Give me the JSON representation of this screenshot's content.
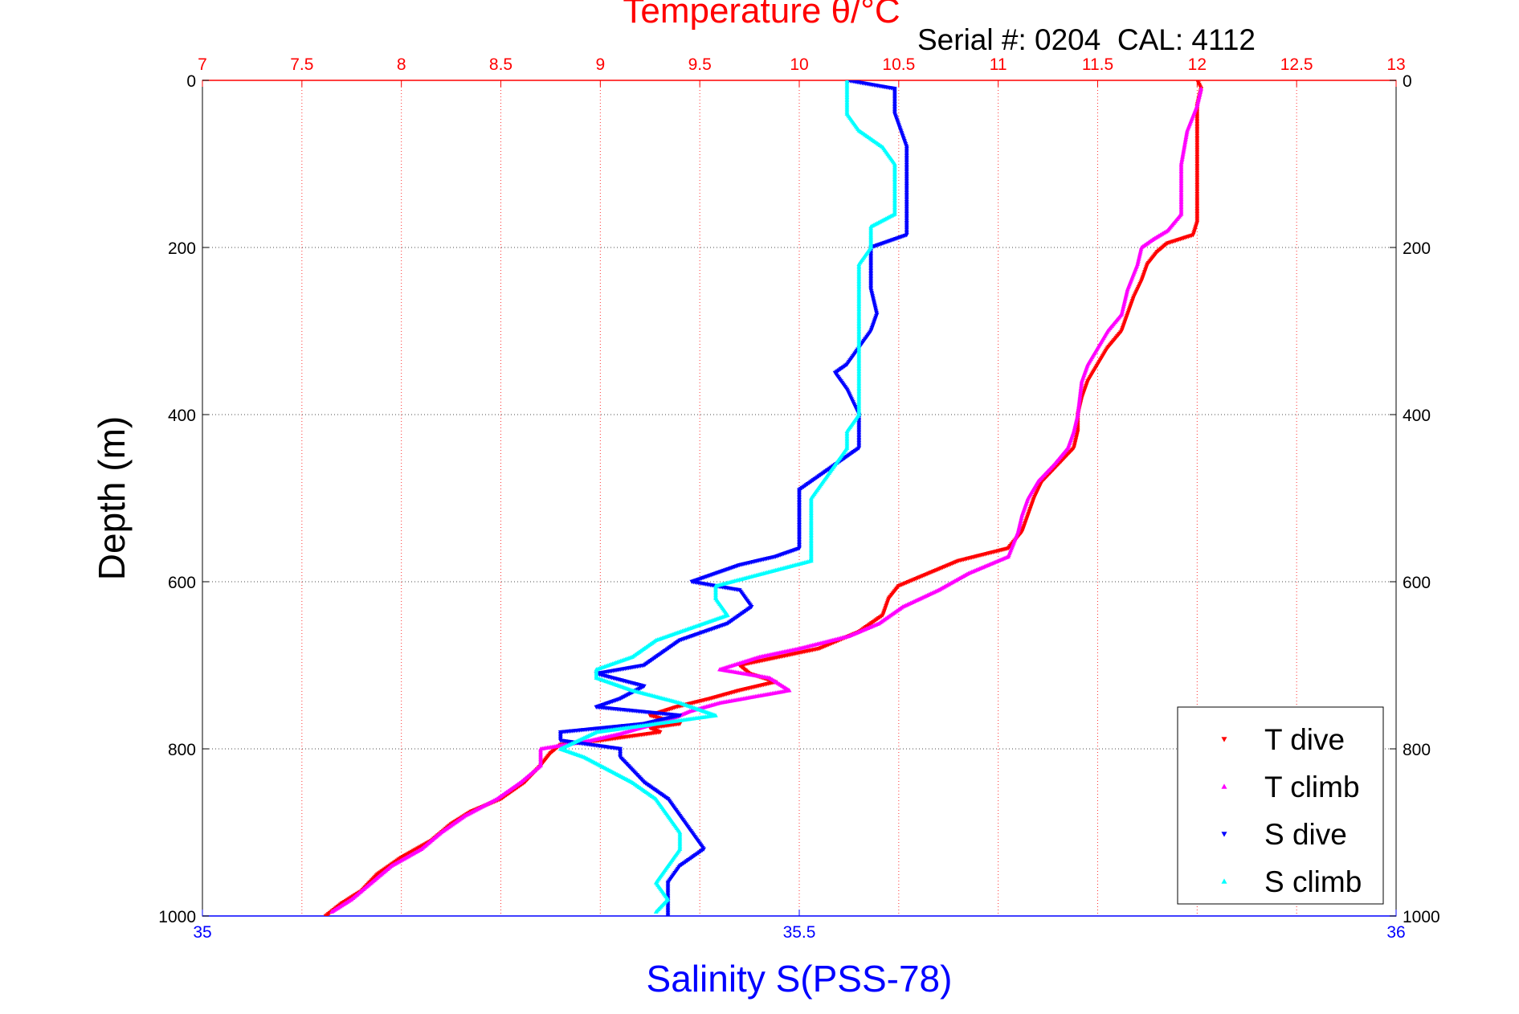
{
  "chart_data": {
    "type": "scatter",
    "title": "Temperature θ/°C",
    "subtitle": "Serial #: 0204  CAL: 4112",
    "xlabel": "Salinity S(PSS-78)",
    "ylabel": "Depth (m)",
    "x_top": {
      "label": "Temperature θ/°C",
      "range": [
        7,
        13
      ],
      "ticks": [
        7,
        7.5,
        8,
        8.5,
        9,
        9.5,
        10,
        10.5,
        11,
        11.5,
        12,
        12.5,
        13
      ],
      "tick_labels": [
        "7",
        "7.5",
        "8",
        "8.5",
        "9",
        "9.5",
        "10",
        "10.5",
        "11",
        "11.5",
        "12",
        "12.5",
        "13"
      ],
      "color": "#ff0000"
    },
    "x_bottom": {
      "label": "Salinity S(PSS-78)",
      "range": [
        35,
        36
      ],
      "ticks": [
        35,
        35.5,
        36
      ],
      "tick_labels": [
        "35",
        "35.5",
        "36"
      ],
      "color": "#0000ff"
    },
    "y": {
      "label": "Depth (m)",
      "range": [
        0,
        1000
      ],
      "reversed": true,
      "ticks": [
        0,
        200,
        400,
        600,
        800,
        1000
      ],
      "tick_labels": [
        "0",
        "200",
        "400",
        "600",
        "800",
        "1000"
      ]
    },
    "grid": true,
    "legend_position": "bottom-right",
    "series": [
      {
        "name": "T dive",
        "axis": "temperature",
        "color": "#ff0000",
        "marker": "triangle-down",
        "points": [
          [
            12.0,
            0
          ],
          [
            12.02,
            10
          ],
          [
            12.0,
            30
          ],
          [
            12.0,
            60
          ],
          [
            12.0,
            100
          ],
          [
            12.0,
            140
          ],
          [
            12.0,
            170
          ],
          [
            11.98,
            185
          ],
          [
            11.85,
            195
          ],
          [
            11.8,
            205
          ],
          [
            11.75,
            220
          ],
          [
            11.72,
            240
          ],
          [
            11.68,
            260
          ],
          [
            11.65,
            280
          ],
          [
            11.62,
            300
          ],
          [
            11.55,
            320
          ],
          [
            11.5,
            340
          ],
          [
            11.45,
            360
          ],
          [
            11.42,
            380
          ],
          [
            11.4,
            400
          ],
          [
            11.4,
            420
          ],
          [
            11.38,
            440
          ],
          [
            11.3,
            460
          ],
          [
            11.22,
            480
          ],
          [
            11.18,
            500
          ],
          [
            11.15,
            520
          ],
          [
            11.12,
            540
          ],
          [
            11.05,
            560
          ],
          [
            10.8,
            575
          ],
          [
            10.65,
            590
          ],
          [
            10.5,
            605
          ],
          [
            10.45,
            620
          ],
          [
            10.42,
            640
          ],
          [
            10.3,
            660
          ],
          [
            10.1,
            680
          ],
          [
            9.9,
            690
          ],
          [
            9.7,
            700
          ],
          [
            9.75,
            710
          ],
          [
            9.88,
            720
          ],
          [
            9.7,
            730
          ],
          [
            9.55,
            740
          ],
          [
            9.38,
            750
          ],
          [
            9.25,
            760
          ],
          [
            9.4,
            770
          ],
          [
            9.25,
            775
          ],
          [
            9.3,
            780
          ],
          [
            9.0,
            790
          ],
          [
            8.8,
            795
          ],
          [
            8.75,
            805
          ],
          [
            8.7,
            820
          ],
          [
            8.62,
            840
          ],
          [
            8.5,
            860
          ],
          [
            8.35,
            875
          ],
          [
            8.25,
            890
          ],
          [
            8.15,
            910
          ],
          [
            8.0,
            930
          ],
          [
            7.88,
            950
          ],
          [
            7.8,
            970
          ],
          [
            7.7,
            985
          ],
          [
            7.62,
            1000
          ]
        ]
      },
      {
        "name": "T climb",
        "axis": "temperature",
        "color": "#ff00ff",
        "marker": "triangle-up",
        "points": [
          [
            12.02,
            10
          ],
          [
            12.0,
            30
          ],
          [
            11.95,
            60
          ],
          [
            11.92,
            100
          ],
          [
            11.92,
            140
          ],
          [
            11.92,
            160
          ],
          [
            11.85,
            180
          ],
          [
            11.78,
            190
          ],
          [
            11.72,
            200
          ],
          [
            11.7,
            220
          ],
          [
            11.65,
            250
          ],
          [
            11.62,
            280
          ],
          [
            11.55,
            300
          ],
          [
            11.5,
            320
          ],
          [
            11.45,
            340
          ],
          [
            11.42,
            360
          ],
          [
            11.4,
            400
          ],
          [
            11.38,
            420
          ],
          [
            11.35,
            440
          ],
          [
            11.28,
            460
          ],
          [
            11.2,
            480
          ],
          [
            11.15,
            500
          ],
          [
            11.12,
            520
          ],
          [
            11.1,
            540
          ],
          [
            11.05,
            570
          ],
          [
            10.85,
            590
          ],
          [
            10.7,
            610
          ],
          [
            10.52,
            630
          ],
          [
            10.4,
            650
          ],
          [
            10.25,
            665
          ],
          [
            10.0,
            680
          ],
          [
            9.8,
            690
          ],
          [
            9.6,
            705
          ],
          [
            9.85,
            715
          ],
          [
            9.95,
            730
          ],
          [
            9.6,
            745
          ],
          [
            9.45,
            755
          ],
          [
            9.35,
            765
          ],
          [
            9.2,
            775
          ],
          [
            9.1,
            782
          ],
          [
            8.95,
            790
          ],
          [
            8.7,
            800
          ],
          [
            8.7,
            820
          ],
          [
            8.6,
            840
          ],
          [
            8.48,
            860
          ],
          [
            8.32,
            880
          ],
          [
            8.2,
            900
          ],
          [
            8.1,
            920
          ],
          [
            7.95,
            940
          ],
          [
            7.85,
            960
          ],
          [
            7.75,
            980
          ],
          [
            7.65,
            995
          ]
        ]
      },
      {
        "name": "S dive",
        "axis": "salinity",
        "color": "#0000ff",
        "marker": "triangle-down",
        "points": [
          [
            35.54,
            0
          ],
          [
            35.58,
            10
          ],
          [
            35.58,
            20
          ],
          [
            35.58,
            40
          ],
          [
            35.59,
            80
          ],
          [
            35.59,
            120
          ],
          [
            35.59,
            160
          ],
          [
            35.59,
            185
          ],
          [
            35.57,
            195
          ],
          [
            35.56,
            200
          ],
          [
            35.56,
            220
          ],
          [
            35.56,
            250
          ],
          [
            35.565,
            280
          ],
          [
            35.56,
            300
          ],
          [
            35.55,
            320
          ],
          [
            35.54,
            340
          ],
          [
            35.53,
            350
          ],
          [
            35.54,
            370
          ],
          [
            35.55,
            400
          ],
          [
            35.55,
            420
          ],
          [
            35.55,
            440
          ],
          [
            35.54,
            450
          ],
          [
            35.53,
            460
          ],
          [
            35.52,
            470
          ],
          [
            35.5,
            490
          ],
          [
            35.5,
            510
          ],
          [
            35.5,
            530
          ],
          [
            35.5,
            550
          ],
          [
            35.5,
            560
          ],
          [
            35.48,
            570
          ],
          [
            35.45,
            580
          ],
          [
            35.43,
            590
          ],
          [
            35.41,
            600
          ],
          [
            35.45,
            610
          ],
          [
            35.46,
            630
          ],
          [
            35.44,
            650
          ],
          [
            35.4,
            670
          ],
          [
            35.38,
            690
          ],
          [
            35.37,
            700
          ],
          [
            35.33,
            710
          ],
          [
            35.37,
            725
          ],
          [
            35.35,
            740
          ],
          [
            35.33,
            750
          ],
          [
            35.4,
            760
          ],
          [
            35.37,
            770
          ],
          [
            35.3,
            780
          ],
          [
            35.3,
            790
          ],
          [
            35.35,
            800
          ],
          [
            35.35,
            810
          ],
          [
            35.36,
            825
          ],
          [
            35.37,
            840
          ],
          [
            35.39,
            860
          ],
          [
            35.4,
            880
          ],
          [
            35.41,
            900
          ],
          [
            35.42,
            920
          ],
          [
            35.4,
            940
          ],
          [
            35.39,
            960
          ],
          [
            35.39,
            980
          ],
          [
            35.39,
            1000
          ]
        ]
      },
      {
        "name": "S climb",
        "axis": "salinity",
        "color": "#00ffff",
        "marker": "triangle-up",
        "points": [
          [
            35.54,
            0
          ],
          [
            35.54,
            20
          ],
          [
            35.54,
            40
          ],
          [
            35.55,
            60
          ],
          [
            35.57,
            80
          ],
          [
            35.58,
            100
          ],
          [
            35.58,
            120
          ],
          [
            35.58,
            160
          ],
          [
            35.56,
            175
          ],
          [
            35.56,
            185
          ],
          [
            35.56,
            200
          ],
          [
            35.55,
            220
          ],
          [
            35.55,
            250
          ],
          [
            35.55,
            280
          ],
          [
            35.55,
            310
          ],
          [
            35.55,
            340
          ],
          [
            35.55,
            370
          ],
          [
            35.55,
            400
          ],
          [
            35.54,
            420
          ],
          [
            35.54,
            440
          ],
          [
            35.53,
            460
          ],
          [
            35.52,
            480
          ],
          [
            35.51,
            500
          ],
          [
            35.51,
            520
          ],
          [
            35.51,
            540
          ],
          [
            35.51,
            560
          ],
          [
            35.51,
            575
          ],
          [
            35.47,
            590
          ],
          [
            35.43,
            605
          ],
          [
            35.43,
            620
          ],
          [
            35.44,
            640
          ],
          [
            35.42,
            650
          ],
          [
            35.38,
            670
          ],
          [
            35.36,
            690
          ],
          [
            35.33,
            705
          ],
          [
            35.33,
            715
          ],
          [
            35.36,
            730
          ],
          [
            35.4,
            745
          ],
          [
            35.43,
            760
          ],
          [
            35.38,
            770
          ],
          [
            35.33,
            780
          ],
          [
            35.3,
            800
          ],
          [
            35.32,
            810
          ],
          [
            35.34,
            825
          ],
          [
            35.36,
            840
          ],
          [
            35.38,
            860
          ],
          [
            35.39,
            880
          ],
          [
            35.4,
            900
          ],
          [
            35.4,
            920
          ],
          [
            35.39,
            940
          ],
          [
            35.38,
            960
          ],
          [
            35.39,
            980
          ],
          [
            35.38,
            995
          ]
        ]
      }
    ]
  }
}
